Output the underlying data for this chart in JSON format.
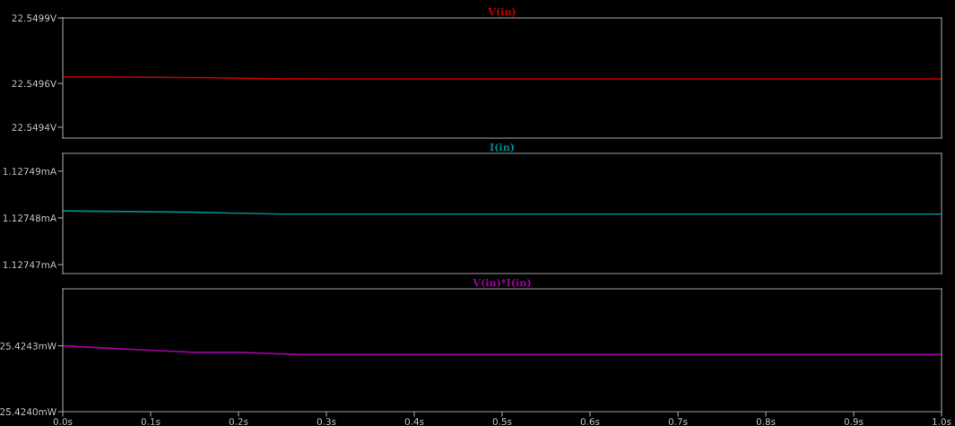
{
  "chart_data": [
    {
      "type": "line",
      "title": "V(in)",
      "tick_labels": "y",
      "grid": false,
      "legend": false,
      "x": [
        0,
        0.05,
        0.1,
        0.17,
        0.24,
        0.3,
        0.5,
        1.0
      ],
      "series": [
        {
          "color": "#c00000",
          "values": [
            22.54963,
            22.54963,
            22.549628,
            22.549626,
            22.549622,
            22.549621,
            22.549621,
            22.549621
          ]
        }
      ],
      "xlim": [
        0,
        1.0
      ],
      "ylim": [
        22.54935,
        22.5499
      ],
      "yticks": [
        {
          "value": 22.5494,
          "label": "22.5494V"
        },
        {
          "value": 22.5496,
          "label": "22.5496V"
        },
        {
          "value": 22.5499,
          "label": "22.5499V"
        }
      ]
    },
    {
      "type": "line",
      "title": "I(in)",
      "tick_labels": "y",
      "grid": false,
      "legend": false,
      "x": [
        0,
        0.05,
        0.1,
        0.15,
        0.2,
        0.25,
        0.5,
        1.0
      ],
      "series": [
        {
          "color": "#008c8c",
          "values": [
            1.1274815,
            1.1274814,
            1.1274813,
            1.1274812,
            1.127481,
            1.1274808,
            1.1274808,
            1.1274808
          ]
        }
      ],
      "xlim": [
        0,
        1.0
      ],
      "ylim": [
        1.1274681,
        1.1274938
      ],
      "yticks": [
        {
          "value": 1.12747,
          "label": "1.12747mA"
        },
        {
          "value": 1.12748,
          "label": "1.12748mA"
        },
        {
          "value": 1.12749,
          "label": "1.12749mA"
        }
      ]
    },
    {
      "type": "line",
      "title": "V(in)*I(in)",
      "grid": false,
      "legend": false,
      "x": [
        0,
        0.05,
        0.1,
        0.15,
        0.2,
        0.27,
        0.5,
        1.0
      ],
      "series": [
        {
          "color": "#a000a0",
          "values": [
            25.4243,
            25.42429,
            25.42428,
            25.42427,
            25.42427,
            25.42426,
            25.42426,
            25.42426
          ]
        }
      ],
      "xlim": [
        0,
        1.0
      ],
      "xticks": [
        {
          "value": 0,
          "label": "0.0s"
        },
        {
          "value": 0.1,
          "label": "0.1s"
        },
        {
          "value": 0.2,
          "label": "0.2s"
        },
        {
          "value": 0.3,
          "label": "0.3s"
        },
        {
          "value": 0.4,
          "label": "0.4s"
        },
        {
          "value": 0.5,
          "label": "0.5s"
        },
        {
          "value": 0.6,
          "label": "0.6s"
        },
        {
          "value": 0.7,
          "label": "0.7s"
        },
        {
          "value": 0.8,
          "label": "0.8s"
        },
        {
          "value": 0.9,
          "label": "0.9s"
        },
        {
          "value": 1.0,
          "label": "1.0s"
        }
      ],
      "ylim": [
        25.424,
        25.42456
      ],
      "yticks": [
        {
          "value": 25.424,
          "label": "25.4240mW"
        },
        {
          "value": 25.4243,
          "label": "25.4243mW"
        }
      ]
    }
  ]
}
